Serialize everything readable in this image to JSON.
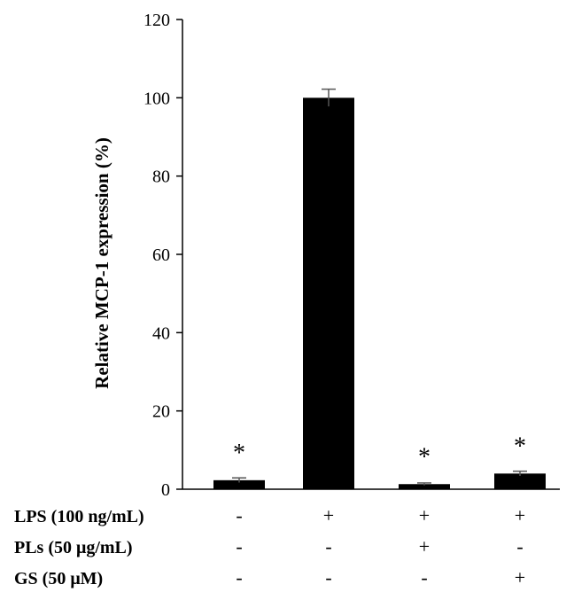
{
  "chart_data": {
    "type": "bar",
    "ylabel": "Relative MCP-1 expression (%)",
    "ylim": [
      0,
      120
    ],
    "yticks": [
      0,
      20,
      40,
      60,
      80,
      100,
      120
    ],
    "bar_color": "#000000",
    "bars": [
      {
        "value": 2.3,
        "error": 0.6,
        "annotation": "*"
      },
      {
        "value": 100,
        "error": 2.2,
        "annotation": ""
      },
      {
        "value": 1.3,
        "error": 0.3,
        "annotation": "*"
      },
      {
        "value": 4.0,
        "error": 0.6,
        "annotation": "*"
      }
    ],
    "condition_rows": [
      {
        "label": "LPS (100 ng/mL)",
        "signs": [
          "-",
          "+",
          "+",
          "+"
        ]
      },
      {
        "label": "PLs (50 μg/mL)",
        "signs": [
          "-",
          "-",
          "+",
          "-"
        ]
      },
      {
        "label": "GS (50 μM)",
        "signs": [
          "-",
          "-",
          "-",
          "+"
        ]
      }
    ]
  }
}
